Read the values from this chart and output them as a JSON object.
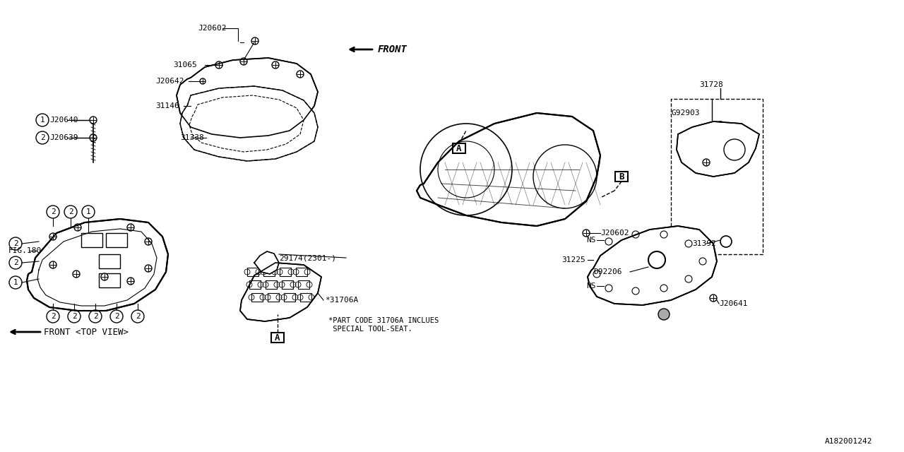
{
  "title": "",
  "bg_color": "#ffffff",
  "line_color": "#000000",
  "fig_width": 12.8,
  "fig_height": 6.4,
  "dpi": 100,
  "font_family": "monospace",
  "labels": {
    "J20602_top": "J20602",
    "J20640": "J20640",
    "J20639": "J20639",
    "J20642": "J20642",
    "J20641": "J20641",
    "J20602_mid": "J20602",
    "J20602_bot": "J20602",
    "31065": "31065",
    "31146": "31146",
    "31338": "31338",
    "31728": "31728",
    "31392": "31392",
    "31225": "31225",
    "31706A": "*31706A",
    "G92903": "G92903",
    "D92206": "D92206",
    "29174": "29174(2301-)",
    "FIG180": "FIG.180",
    "NS1": "NS",
    "NS2": "NS",
    "front_top": "FRONT",
    "front_bottom": "FRONT <TOP VIEW>",
    "part_note": "*PART CODE 31706A INCLUES\n SPECIAL TOOL-SEAT.",
    "diagram_id": "A182001242",
    "label_A1": "A",
    "label_A2": "A",
    "label_B1": "B",
    "label_B2": "B"
  },
  "circle_labels": {
    "circ1_top": "1",
    "circ2_top": "2",
    "circ2_mid1": "2",
    "circ2_mid2": "2",
    "circ1_bot": "1",
    "circ2_bot1": "2",
    "circ2_bot2": "2",
    "circ2_bot3": "2",
    "circ2_bot4": "2",
    "circ2_bot5": "2"
  }
}
